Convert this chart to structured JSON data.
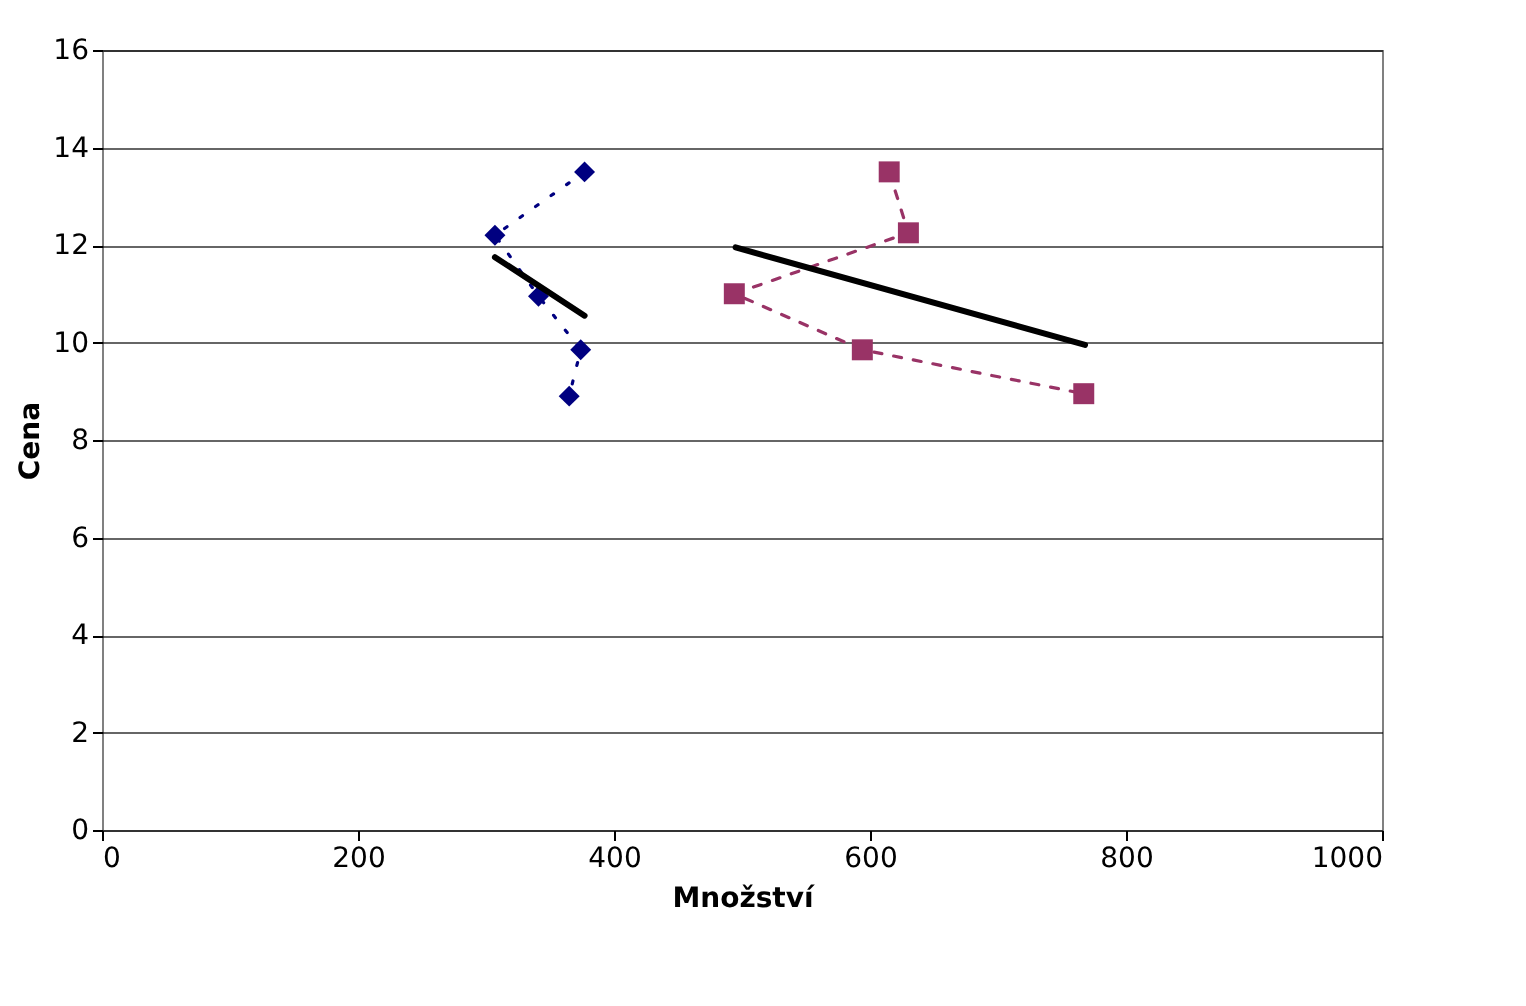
{
  "chart_data": {
    "type": "line",
    "xlabel": "Množství",
    "ylabel": "Cena",
    "xlim": [
      0,
      1000
    ],
    "xticks": [
      0,
      200,
      400,
      600,
      800,
      1000
    ],
    "ylim": [
      0,
      16
    ],
    "yticks": [
      0,
      2,
      4,
      6,
      8,
      10,
      12,
      14,
      16
    ],
    "grid": "y",
    "series": [
      {
        "color": "#000080",
        "marker": "diamond",
        "line_style": "dotted",
        "x": [
          377,
          307,
          341,
          374,
          365
        ],
        "values": [
          13.5,
          12.2,
          10.95,
          9.85,
          8.9
        ]
      },
      {
        "color": "#993366",
        "marker": "square",
        "line_style": "dashed",
        "x": [
          615,
          630,
          494,
          594,
          767
        ],
        "values": [
          13.5,
          12.25,
          11.0,
          9.85,
          8.95
        ]
      },
      {
        "color": "#000000",
        "marker": "none",
        "line_style": "solid",
        "x": [
          307,
          377
        ],
        "values": [
          11.75,
          10.55
        ]
      },
      {
        "color": "#000000",
        "marker": "none",
        "line_style": "solid",
        "x": [
          495,
          768
        ],
        "values": [
          11.95,
          9.95
        ]
      }
    ]
  }
}
